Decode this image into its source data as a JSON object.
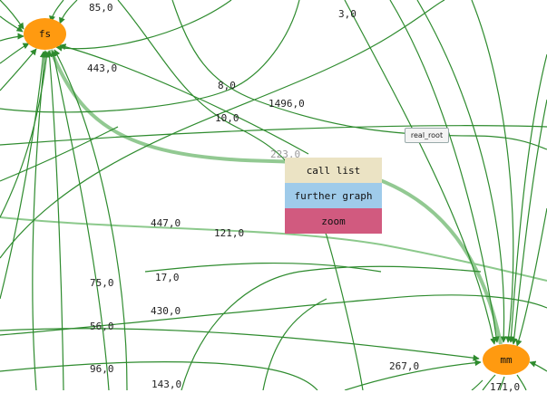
{
  "nodes": {
    "fs": {
      "label": "fs",
      "color": "#ff9a10"
    },
    "mm": {
      "label": "mm",
      "color": "#ff9a10"
    }
  },
  "edge_labels": [
    "85,0",
    "3,0",
    "443,0",
    "8,0",
    "1496,0",
    "10,0",
    "223,0",
    "447,0",
    "121,0",
    "75,0",
    "17,0",
    "430,0",
    "56,0",
    "96,0",
    "143,0",
    "267,0",
    "171,0"
  ],
  "real_root": {
    "label": "real_root"
  },
  "context_menu": {
    "call_list": {
      "label": "call list",
      "color": "#ebe3c4"
    },
    "further_graph": {
      "label": "further graph",
      "color": "#9fcbea"
    },
    "zoom": {
      "label": "zoom",
      "color": "#d15a7f"
    }
  },
  "colors": {
    "edge": "#2e8b2e",
    "edge_highlight": "#7fc07f",
    "background": "#ffffff"
  }
}
